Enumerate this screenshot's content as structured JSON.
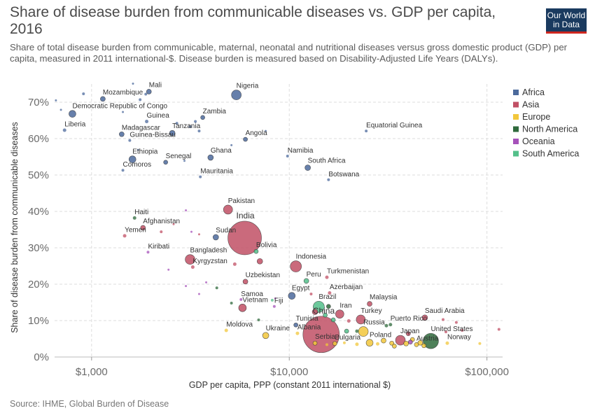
{
  "header": {
    "title": "Share of disease burden from communicable diseases vs. GDP per capita, 2016",
    "subtitle": "Share of total disease burden from communicable, maternal, neonatal and nutritional diseases versus gross domestic product (GDP) per capita, measured in 2011 international-$. Disease burden is measured based on Disability-Adjusted Life Years (DALYs).",
    "logo_line1": "Our World",
    "logo_line2": "in Data",
    "source": "Source: IHME, Global Burden of Disease"
  },
  "colors": {
    "Africa": "#4c6a9c",
    "Asia": "#c15065",
    "Europe": "#f2c73b",
    "North America": "#2f6a3c",
    "Oceania": "#a652ba",
    "South America": "#54c08b"
  },
  "chart_data": {
    "type": "scatter",
    "title": "Share of disease burden from communicable diseases vs. GDP per capita, 2016",
    "xlabel": "GDP per capita, PPP (constant 2011 international $)",
    "ylabel": "Share of disease burden from communicable diseases",
    "x_scale": "log",
    "xlim": [
      650,
      120000
    ],
    "ylim": [
      0,
      75
    ],
    "x_ticks": [
      1000,
      10000,
      100000
    ],
    "x_tick_labels": [
      "$1,000",
      "$10,000",
      "$100,000"
    ],
    "y_ticks": [
      0,
      10,
      20,
      30,
      40,
      50,
      60,
      70
    ],
    "y_tick_labels": [
      "0%",
      "10%",
      "20%",
      "30%",
      "40%",
      "50%",
      "60%",
      "70%"
    ],
    "grid": true,
    "legend_position": "right",
    "legend": [
      "Africa",
      "Asia",
      "Europe",
      "North America",
      "Oceania",
      "South America"
    ],
    "points": [
      {
        "label": "Nigeria",
        "region": "Africa",
        "x": 5400,
        "y": 72,
        "size": 7
      },
      {
        "label": "Mali",
        "region": "Africa",
        "x": 1950,
        "y": 72.9,
        "size": 3.5
      },
      {
        "label": "Mozambique",
        "region": "Africa",
        "x": 1140,
        "y": 70.9,
        "size": 3.5
      },
      {
        "label": "Democratic Republic of Congo",
        "region": "Africa",
        "x": 800,
        "y": 66.8,
        "size": 5
      },
      {
        "label": "Zambia",
        "region": "Africa",
        "x": 3650,
        "y": 65.8,
        "size": 3
      },
      {
        "label": "Guinea",
        "region": "Africa",
        "x": 1900,
        "y": 64.7,
        "size": 2.5
      },
      {
        "label": "Liberia",
        "region": "Africa",
        "x": 730,
        "y": 62.3,
        "size": 2.5
      },
      {
        "label": "Madagascar",
        "region": "Africa",
        "x": 1420,
        "y": 61.2,
        "size": 3.5
      },
      {
        "label": "Tanzania",
        "region": "Africa",
        "x": 2560,
        "y": 61.5,
        "size": 4
      },
      {
        "label": "Guinea-Bissau",
        "region": "Africa",
        "x": 1560,
        "y": 59.5,
        "size": 2
      },
      {
        "label": "Angola",
        "region": "Africa",
        "x": 6000,
        "y": 59.8,
        "size": 3
      },
      {
        "label": "Equatorial Guinea",
        "region": "Africa",
        "x": 24500,
        "y": 62.1,
        "size": 2
      },
      {
        "label": "Ethiopia",
        "region": "Africa",
        "x": 1610,
        "y": 54.3,
        "size": 5
      },
      {
        "label": "Senegal",
        "region": "Africa",
        "x": 2370,
        "y": 53.5,
        "size": 3
      },
      {
        "label": "Ghana",
        "region": "Africa",
        "x": 4000,
        "y": 54.8,
        "size": 4
      },
      {
        "label": "Namibia",
        "region": "Africa",
        "x": 9800,
        "y": 55.2,
        "size": 2
      },
      {
        "label": "Comoros",
        "region": "Africa",
        "x": 1440,
        "y": 51.3,
        "size": 2
      },
      {
        "label": "South Africa",
        "region": "Africa",
        "x": 12400,
        "y": 52,
        "size": 4
      },
      {
        "label": "Mauritania",
        "region": "Africa",
        "x": 3550,
        "y": 49.5,
        "size": 2
      },
      {
        "label": "Botswana",
        "region": "Africa",
        "x": 15800,
        "y": 48.7,
        "size": 2
      },
      {
        "label": "Pakistan",
        "region": "Asia",
        "x": 4900,
        "y": 40.5,
        "size": 6.5
      },
      {
        "label": "Haiti",
        "region": "North America",
        "x": 1650,
        "y": 38.2,
        "size": 2.5
      },
      {
        "label": "Afghanistan",
        "region": "Asia",
        "x": 1820,
        "y": 35.5,
        "size": 3.5
      },
      {
        "label": "Yemen",
        "region": "Asia",
        "x": 1470,
        "y": 33.3,
        "size": 2.5
      },
      {
        "label": "Sudan",
        "region": "Africa",
        "x": 4250,
        "y": 32.9,
        "size": 4
      },
      {
        "label": "India",
        "region": "Asia",
        "x": 5950,
        "y": 32.7,
        "size": 24
      },
      {
        "label": "Bolivia",
        "region": "South America",
        "x": 6800,
        "y": 29,
        "size": 3
      },
      {
        "label": "Kiribati",
        "region": "Oceania",
        "x": 1930,
        "y": 28.8,
        "size": 2
      },
      {
        "label": "Bangladesh",
        "region": "Asia",
        "x": 3150,
        "y": 26.8,
        "size": 7
      },
      {
        "label": "Kyrgyzstan",
        "region": "Asia",
        "x": 3250,
        "y": 24.7,
        "size": 2.5
      },
      {
        "label": "Indonesia",
        "region": "Asia",
        "x": 10800,
        "y": 24.9,
        "size": 8
      },
      {
        "label": "Turkmenistan",
        "region": "Asia",
        "x": 15500,
        "y": 21.9,
        "size": 2.5
      },
      {
        "label": "Peru",
        "region": "South America",
        "x": 12200,
        "y": 20.9,
        "size": 3.5
      },
      {
        "label": "Uzbekistan",
        "region": "Asia",
        "x": 6000,
        "y": 20.7,
        "size": 3.5
      },
      {
        "label": "Azerbaijan",
        "region": "Asia",
        "x": 16000,
        "y": 17.6,
        "size": 2.5
      },
      {
        "label": "Egypt",
        "region": "Africa",
        "x": 10300,
        "y": 16.8,
        "size": 5
      },
      {
        "label": "Samoa",
        "region": "Oceania",
        "x": 5700,
        "y": 15.8,
        "size": 2
      },
      {
        "label": "Brazil",
        "region": "South America",
        "x": 14100,
        "y": 13.8,
        "size": 8
      },
      {
        "label": "Malaysia",
        "region": "Asia",
        "x": 25500,
        "y": 14.6,
        "size": 3.5
      },
      {
        "label": "Vietnam",
        "region": "Asia",
        "x": 5800,
        "y": 13.5,
        "size": 5.5
      },
      {
        "label": "Fiji",
        "region": "Oceania",
        "x": 8400,
        "y": 13.9,
        "size": 2
      },
      {
        "label": "Iran",
        "region": "Asia",
        "x": 18000,
        "y": 11.8,
        "size": 6
      },
      {
        "label": "Saudi Arabia",
        "region": "Asia",
        "x": 48500,
        "y": 10.8,
        "size": 4
      },
      {
        "label": "Turkey",
        "region": "Asia",
        "x": 23000,
        "y": 10.3,
        "size": 6.5
      },
      {
        "label": "China",
        "region": "Asia",
        "x": 14500,
        "y": 6.2,
        "size": 26
      },
      {
        "label": "Tunisia",
        "region": "Africa",
        "x": 10800,
        "y": 8.8,
        "size": 3
      },
      {
        "label": "Russia",
        "region": "Europe",
        "x": 23700,
        "y": 7,
        "size": 7
      },
      {
        "label": "Puerto Rico",
        "region": "North America",
        "x": 32500,
        "y": 8.9,
        "size": 2.5
      },
      {
        "label": "Moldova",
        "region": "Europe",
        "x": 4800,
        "y": 7.3,
        "size": 2.5
      },
      {
        "label": "Albania",
        "region": "Europe",
        "x": 11000,
        "y": 6.5,
        "size": 2.5
      },
      {
        "label": "Ukraine",
        "region": "Europe",
        "x": 7600,
        "y": 5.9,
        "size": 4.5
      },
      {
        "label": "United States",
        "region": "North America",
        "x": 52000,
        "y": 4.4,
        "size": 11
      },
      {
        "label": "Japan",
        "region": "Asia",
        "x": 36500,
        "y": 4.6,
        "size": 7
      },
      {
        "label": "Poland",
        "region": "Europe",
        "x": 25500,
        "y": 3.9,
        "size": 5
      },
      {
        "label": "Serbia",
        "region": "Europe",
        "x": 13500,
        "y": 3.8,
        "size": 3
      },
      {
        "label": "Bulgaria",
        "region": "Europe",
        "x": 17000,
        "y": 3.7,
        "size": 3
      },
      {
        "label": "Austria",
        "region": "Europe",
        "x": 44000,
        "y": 3.4,
        "size": 3
      },
      {
        "label": "Norway",
        "region": "Europe",
        "x": 63000,
        "y": 3.8,
        "size": 2.5
      }
    ],
    "unlabeled_points": [
      {
        "region": "Africa",
        "x": 660,
        "y": 70.5,
        "size": 1.5
      },
      {
        "region": "Africa",
        "x": 910,
        "y": 72.3,
        "size": 2
      },
      {
        "region": "Africa",
        "x": 1620,
        "y": 75.1,
        "size": 1.5
      },
      {
        "region": "Africa",
        "x": 1760,
        "y": 70.7,
        "size": 2
      },
      {
        "region": "Africa",
        "x": 1880,
        "y": 72.2,
        "size": 2
      },
      {
        "region": "Africa",
        "x": 1440,
        "y": 67.3,
        "size": 1.5
      },
      {
        "region": "Africa",
        "x": 700,
        "y": 67.9,
        "size": 1.5
      },
      {
        "region": "Africa",
        "x": 2700,
        "y": 64.2,
        "size": 2
      },
      {
        "region": "Africa",
        "x": 3150,
        "y": 63.3,
        "size": 2
      },
      {
        "region": "Africa",
        "x": 3350,
        "y": 64.7,
        "size": 2
      },
      {
        "region": "Africa",
        "x": 3500,
        "y": 62.1,
        "size": 2
      },
      {
        "region": "Africa",
        "x": 7600,
        "y": 62.1,
        "size": 1.5
      },
      {
        "region": "Africa",
        "x": 5100,
        "y": 58.2,
        "size": 1.5
      },
      {
        "region": "Africa",
        "x": 1720,
        "y": 56.9,
        "size": 1.5
      },
      {
        "region": "Africa",
        "x": 2950,
        "y": 53.9,
        "size": 1.5
      },
      {
        "region": "Oceania",
        "x": 3000,
        "y": 40.3,
        "size": 1.5
      },
      {
        "region": "Asia",
        "x": 2250,
        "y": 34.4,
        "size": 2
      },
      {
        "region": "Asia",
        "x": 2600,
        "y": 36.5,
        "size": 1.5
      },
      {
        "region": "Oceania",
        "x": 3200,
        "y": 34.4,
        "size": 1.5
      },
      {
        "region": "Asia",
        "x": 3500,
        "y": 33.7,
        "size": 1.5
      },
      {
        "region": "Oceania",
        "x": 2450,
        "y": 24,
        "size": 1.5
      },
      {
        "region": "Asia",
        "x": 5300,
        "y": 25.5,
        "size": 2.5
      },
      {
        "region": "Asia",
        "x": 7100,
        "y": 26.3,
        "size": 4
      },
      {
        "region": "Oceania",
        "x": 3800,
        "y": 20.5,
        "size": 1.5
      },
      {
        "region": "Oceania",
        "x": 3000,
        "y": 19.5,
        "size": 1.5
      },
      {
        "region": "Oceania",
        "x": 3500,
        "y": 17.3,
        "size": 1.5
      },
      {
        "region": "North America",
        "x": 4300,
        "y": 19,
        "size": 2
      },
      {
        "region": "North America",
        "x": 5100,
        "y": 14.8,
        "size": 2
      },
      {
        "region": "North America",
        "x": 7000,
        "y": 10.2,
        "size": 2
      },
      {
        "region": "Oceania",
        "x": 8500,
        "y": 16.1,
        "size": 1.5
      },
      {
        "region": "South America",
        "x": 8200,
        "y": 15.6,
        "size": 2
      },
      {
        "region": "Asia",
        "x": 12900,
        "y": 17.3,
        "size": 2
      },
      {
        "region": "Asia",
        "x": 13500,
        "y": 12.4,
        "size": 4
      },
      {
        "region": "South America",
        "x": 15200,
        "y": 11.5,
        "size": 3
      },
      {
        "region": "North America",
        "x": 15800,
        "y": 13.9,
        "size": 3
      },
      {
        "region": "South America",
        "x": 16700,
        "y": 10.2,
        "size": 3
      },
      {
        "region": "Asia",
        "x": 20000,
        "y": 9.9,
        "size": 2.5
      },
      {
        "region": "North America",
        "x": 22000,
        "y": 7.1,
        "size": 2.5
      },
      {
        "region": "South America",
        "x": 19500,
        "y": 7.1,
        "size": 3
      },
      {
        "region": "North America",
        "x": 31000,
        "y": 8.6,
        "size": 2.5
      },
      {
        "region": "Asia",
        "x": 60000,
        "y": 10.3,
        "size": 2
      },
      {
        "region": "Asia",
        "x": 70000,
        "y": 9.5,
        "size": 2
      },
      {
        "region": "Asia",
        "x": 115000,
        "y": 7.6,
        "size": 2
      },
      {
        "region": "Asia",
        "x": 40000,
        "y": 6.4,
        "size": 3
      },
      {
        "region": "Europe",
        "x": 30000,
        "y": 4.5,
        "size": 3.5
      },
      {
        "region": "Europe",
        "x": 33000,
        "y": 3.8,
        "size": 3
      },
      {
        "region": "Europe",
        "x": 28000,
        "y": 3.6,
        "size": 2.5
      },
      {
        "region": "Europe",
        "x": 39000,
        "y": 3.7,
        "size": 3.5
      },
      {
        "region": "Europe",
        "x": 42000,
        "y": 4.8,
        "size": 3
      },
      {
        "region": "Europe",
        "x": 46000,
        "y": 3.9,
        "size": 3.5
      },
      {
        "region": "Europe",
        "x": 22000,
        "y": 3.5,
        "size": 2.5
      },
      {
        "region": "Europe",
        "x": 19000,
        "y": 3.9,
        "size": 2
      },
      {
        "region": "Europe",
        "x": 15500,
        "y": 3.4,
        "size": 2
      },
      {
        "region": "Europe",
        "x": 92000,
        "y": 3.7,
        "size": 2
      },
      {
        "region": "Europe",
        "x": 34000,
        "y": 3,
        "size": 3
      },
      {
        "region": "Europe",
        "x": 48000,
        "y": 3.1,
        "size": 3
      },
      {
        "region": "Oceania",
        "x": 41000,
        "y": 4.1,
        "size": 3
      },
      {
        "region": "Asia",
        "x": 62000,
        "y": 6.9,
        "size": 2
      },
      {
        "region": "Asia",
        "x": 75000,
        "y": 7.3,
        "size": 2
      }
    ]
  }
}
